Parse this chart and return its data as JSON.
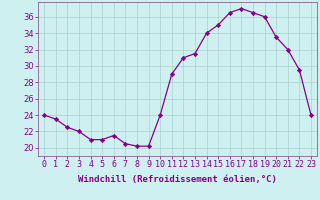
{
  "x": [
    0,
    1,
    2,
    3,
    4,
    5,
    6,
    7,
    8,
    9,
    10,
    11,
    12,
    13,
    14,
    15,
    16,
    17,
    18,
    19,
    20,
    21,
    22,
    23
  ],
  "y": [
    24,
    23.5,
    22.5,
    22,
    21,
    21,
    21.5,
    20.5,
    20.2,
    20.2,
    24,
    29,
    31,
    31.5,
    34,
    35,
    36.5,
    37,
    36.5,
    36,
    33.5,
    32,
    29.5,
    24
  ],
  "line_color": "#880088",
  "marker": "D",
  "marker_size": 2.2,
  "bg_color": "#cff0f0",
  "grid_color": "#aacece",
  "xlabel": "Windchill (Refroidissement éolien,°C)",
  "xlabel_fontsize": 6.5,
  "xlabel_color": "#880088",
  "xtick_labels": [
    "0",
    "1",
    "2",
    "3",
    "4",
    "5",
    "6",
    "7",
    "8",
    "9",
    "10",
    "11",
    "12",
    "13",
    "14",
    "15",
    "16",
    "17",
    "18",
    "19",
    "20",
    "21",
    "22",
    "23"
  ],
  "ytick_values": [
    20,
    22,
    24,
    26,
    28,
    30,
    32,
    34,
    36
  ],
  "ylim": [
    19.0,
    37.8
  ],
  "xlim": [
    -0.5,
    23.5
  ],
  "tick_fontsize": 6.0,
  "spine_color": "#8B6090"
}
